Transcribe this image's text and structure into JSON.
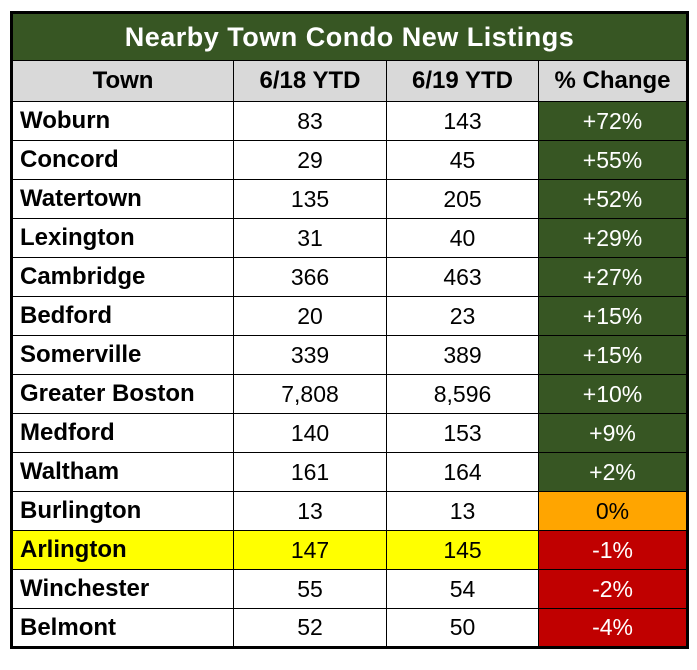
{
  "chart_data": {
    "type": "table",
    "title": "Nearby Town Condo New Listings",
    "columns": [
      "Town",
      "6/18 YTD",
      "6/19 YTD",
      "% Change"
    ],
    "rows": [
      {
        "town": "Woburn",
        "ytd_2018": "83",
        "ytd_2019": "143",
        "pct_change": "+72%",
        "change_color": "green",
        "row_highlight": "none"
      },
      {
        "town": "Concord",
        "ytd_2018": "29",
        "ytd_2019": "45",
        "pct_change": "+55%",
        "change_color": "green",
        "row_highlight": "none"
      },
      {
        "town": "Watertown",
        "ytd_2018": "135",
        "ytd_2019": "205",
        "pct_change": "+52%",
        "change_color": "green",
        "row_highlight": "none"
      },
      {
        "town": "Lexington",
        "ytd_2018": "31",
        "ytd_2019": "40",
        "pct_change": "+29%",
        "change_color": "green",
        "row_highlight": "none"
      },
      {
        "town": "Cambridge",
        "ytd_2018": "366",
        "ytd_2019": "463",
        "pct_change": "+27%",
        "change_color": "green",
        "row_highlight": "none"
      },
      {
        "town": "Bedford",
        "ytd_2018": "20",
        "ytd_2019": "23",
        "pct_change": "+15%",
        "change_color": "green",
        "row_highlight": "none"
      },
      {
        "town": "Somerville",
        "ytd_2018": "339",
        "ytd_2019": "389",
        "pct_change": "+15%",
        "change_color": "green",
        "row_highlight": "none"
      },
      {
        "town": "Greater Boston",
        "ytd_2018": "7,808",
        "ytd_2019": "8,596",
        "pct_change": "+10%",
        "change_color": "green",
        "row_highlight": "none"
      },
      {
        "town": "Medford",
        "ytd_2018": "140",
        "ytd_2019": "153",
        "pct_change": "+9%",
        "change_color": "green",
        "row_highlight": "none"
      },
      {
        "town": "Waltham",
        "ytd_2018": "161",
        "ytd_2019": "164",
        "pct_change": "+2%",
        "change_color": "green",
        "row_highlight": "none"
      },
      {
        "town": "Burlington",
        "ytd_2018": "13",
        "ytd_2019": "13",
        "pct_change": "0%",
        "change_color": "orange",
        "row_highlight": "none"
      },
      {
        "town": "Arlington",
        "ytd_2018": "147",
        "ytd_2019": "145",
        "pct_change": "-1%",
        "change_color": "red",
        "row_highlight": "yellow"
      },
      {
        "town": "Winchester",
        "ytd_2018": "55",
        "ytd_2019": "54",
        "pct_change": "-2%",
        "change_color": "red",
        "row_highlight": "none"
      },
      {
        "town": "Belmont",
        "ytd_2018": "52",
        "ytd_2019": "50",
        "pct_change": "-4%",
        "change_color": "red",
        "row_highlight": "none"
      }
    ]
  },
  "colors": {
    "title_bg": "#375623",
    "title_text": "#FFFFFF",
    "header_bg": "#D9D9D9",
    "positive_bg": "#375623",
    "zero_bg": "#FFA500",
    "negative_bg": "#C00000",
    "highlight_bg": "#FFFF00",
    "border": "#000000"
  }
}
